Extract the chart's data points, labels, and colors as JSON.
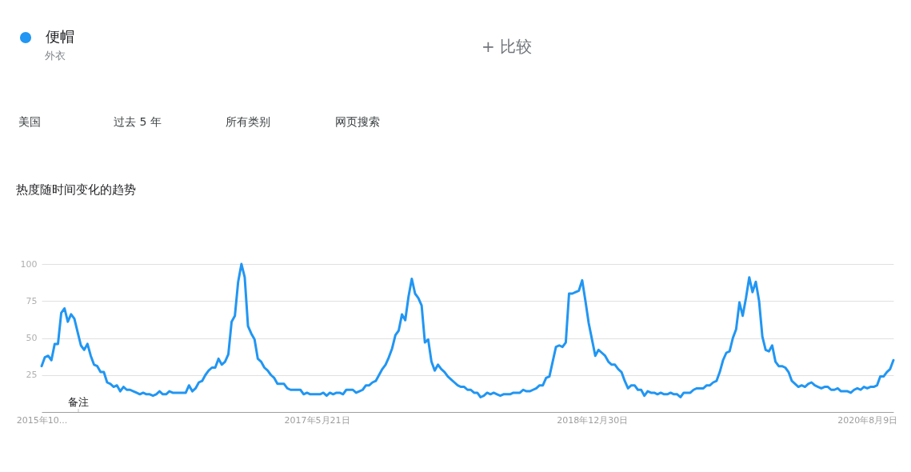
{
  "chart_data": {
    "type": "line",
    "title": "热度随时间变化的趋势",
    "annotations": [
      "外衣",
      "+ 比较",
      "美国",
      "过去 5 年",
      "所有类别",
      "网页搜索",
      "备注"
    ],
    "x": [
      "2015-10-11",
      "2015-10-18",
      "2015-10-25",
      "2015-11-01",
      "2015-11-08",
      "2015-11-15",
      "2015-11-22",
      "2015-11-29",
      "2015-12-06",
      "2015-12-13",
      "2015-12-20",
      "2015-12-27",
      "2016-01-03",
      "2016-01-10",
      "2016-01-17",
      "2016-01-24",
      "2016-01-31",
      "2016-02-07",
      "2016-02-14",
      "2016-02-21",
      "2016-02-28",
      "2016-03-06",
      "2016-03-13",
      "2016-03-20",
      "2016-03-27",
      "2016-04-03",
      "2016-04-10",
      "2016-04-17",
      "2016-04-24",
      "2016-05-01",
      "2016-05-08",
      "2016-05-15",
      "2016-05-22",
      "2016-05-29",
      "2016-06-05",
      "2016-06-12",
      "2016-06-19",
      "2016-06-26",
      "2016-07-03",
      "2016-07-10",
      "2016-07-17",
      "2016-08-14",
      "2016-08-21",
      "2016-08-28",
      "2016-09-04",
      "2016-09-11",
      "2016-09-18",
      "2016-09-25",
      "2016-10-02",
      "2016-10-09",
      "2016-10-16",
      "2016-10-23",
      "2016-10-30",
      "2016-11-06",
      "2016-11-13",
      "2016-11-20",
      "2016-11-27",
      "2016-12-04",
      "2016-12-11",
      "2016-12-18",
      "2016-12-25",
      "2017-01-01",
      "2017-01-08",
      "2017-01-15",
      "2017-01-22",
      "2017-01-29",
      "2017-02-05",
      "2017-02-12",
      "2017-02-19",
      "2017-02-26",
      "2017-03-12",
      "2017-03-19",
      "2017-03-26",
      "2017-04-16",
      "2017-04-23",
      "2017-04-30",
      "2017-05-07",
      "2017-05-28",
      "2017-06-04",
      "2017-06-11",
      "2017-06-18",
      "2017-06-25",
      "2017-07-02",
      "2017-07-09",
      "2017-07-16",
      "2017-07-23",
      "2017-08-06",
      "2017-08-13",
      "2017-08-20",
      "2017-08-27",
      "2017-09-03",
      "2017-09-10",
      "2017-09-17",
      "2017-09-24",
      "2017-10-01",
      "2017-10-08",
      "2017-10-15",
      "2017-10-22",
      "2017-10-29",
      "2017-11-05",
      "2017-11-12",
      "2017-11-19",
      "2017-11-26",
      "2017-12-03",
      "2017-12-10",
      "2017-12-17",
      "2017-12-24",
      "2017-12-31",
      "2018-01-07",
      "2018-01-14",
      "2018-01-21",
      "2018-01-28",
      "2018-02-04",
      "2018-02-11",
      "2018-02-18",
      "2018-02-25",
      "2018-03-04",
      "2018-03-11",
      "2018-03-18",
      "2018-03-25",
      "2018-04-01",
      "2018-04-08",
      "2018-04-15",
      "2018-04-22",
      "2018-04-29",
      "2018-05-06",
      "2018-05-13",
      "2018-05-20",
      "2018-05-27",
      "2018-06-03",
      "2018-06-10",
      "2018-06-17",
      "2018-06-24",
      "2018-07-08",
      "2018-07-15",
      "2018-07-29",
      "2018-08-05",
      "2018-08-12",
      "2018-08-19",
      "2018-08-26",
      "2018-09-02",
      "2018-09-09",
      "2018-09-16",
      "2018-09-23",
      "2018-09-30",
      "2018-10-07",
      "2018-10-14",
      "2018-10-21",
      "2018-10-28",
      "2018-11-04",
      "2018-11-11",
      "2018-11-18",
      "2018-11-25",
      "2018-12-02",
      "2018-12-09",
      "2018-12-16",
      "2018-12-23",
      "2018-12-30",
      "2019-01-06",
      "2019-01-13",
      "2019-01-20",
      "2019-01-27",
      "2019-02-03",
      "2019-02-10",
      "2019-02-17",
      "2019-02-24",
      "2019-03-03",
      "2019-03-10",
      "2019-03-17",
      "2019-03-24",
      "2019-03-31",
      "2019-04-07",
      "2019-04-14",
      "2019-04-21",
      "2019-04-28",
      "2019-05-05",
      "2019-05-12",
      "2019-05-19",
      "2019-05-26",
      "2019-06-02",
      "2019-06-09",
      "2019-06-16",
      "2019-06-23",
      "2019-06-30",
      "2019-07-07",
      "2019-07-14",
      "2019-07-28",
      "2019-08-04",
      "2019-08-11",
      "2019-08-25",
      "2019-09-01",
      "2019-09-08",
      "2019-09-15",
      "2019-09-22",
      "2019-09-29",
      "2019-10-06",
      "2019-10-13",
      "2019-10-20",
      "2019-10-27",
      "2019-11-03",
      "2019-11-10",
      "2019-11-17",
      "2019-11-24",
      "2019-12-01",
      "2019-12-08",
      "2019-12-15",
      "2019-12-22",
      "2019-12-29",
      "2020-01-05",
      "2020-01-12",
      "2020-01-19",
      "2020-01-26",
      "2020-02-02",
      "2020-02-09",
      "2020-02-16",
      "2020-02-23",
      "2020-03-01",
      "2020-03-08",
      "2020-03-15",
      "2020-03-22",
      "2020-03-29",
      "2020-04-05",
      "2020-04-12",
      "2020-04-19",
      "2020-04-26",
      "2020-05-03",
      "2020-05-10",
      "2020-05-17",
      "2020-05-24",
      "2020-05-31",
      "2020-06-07",
      "2020-06-14",
      "2020-06-28",
      "2020-07-05",
      "2020-07-12",
      "2020-07-19",
      "2020-07-26",
      "2020-08-02",
      "2020-08-09",
      "2020-08-16",
      "2020-08-23",
      "2020-08-30",
      "2020-09-06",
      "2020-09-13",
      "2020-09-20",
      "2020-09-27",
      "2020-10-04"
    ],
    "series": [
      {
        "name": "便帽",
        "color": "#2196f3",
        "values": [
          31,
          37,
          38,
          35,
          46,
          46,
          67,
          70,
          61,
          66,
          63,
          54,
          45,
          42,
          46,
          38,
          32,
          31,
          27,
          27,
          20,
          19,
          17,
          18,
          14,
          17,
          15,
          15,
          14,
          13,
          12,
          13,
          12,
          12,
          11,
          12,
          14,
          12,
          12,
          14,
          13,
          13,
          18,
          14,
          16,
          20,
          21,
          25,
          28,
          30,
          30,
          36,
          32,
          34,
          39,
          61,
          65,
          88,
          100,
          91,
          58,
          53,
          49,
          36,
          34,
          30,
          28,
          25,
          23,
          19,
          19,
          16,
          15,
          15,
          12,
          13,
          12,
          12,
          13,
          11,
          13,
          12,
          13,
          13,
          12,
          15,
          15,
          13,
          14,
          15,
          18,
          18,
          20,
          21,
          25,
          29,
          32,
          37,
          43,
          52,
          55,
          66,
          62,
          78,
          90,
          80,
          77,
          72,
          47,
          49,
          34,
          28,
          32,
          29,
          27,
          24,
          22,
          20,
          18,
          17,
          17,
          15,
          15,
          13,
          13,
          10,
          11,
          13,
          12,
          13,
          12,
          11,
          12,
          12,
          13,
          13,
          15,
          14,
          14,
          15,
          16,
          18,
          18,
          23,
          24,
          34,
          44,
          45,
          44,
          47,
          80,
          80,
          81,
          82,
          89,
          75,
          60,
          49,
          38,
          42,
          40,
          38,
          34,
          32,
          32,
          29,
          27,
          21,
          16,
          18,
          18,
          15,
          15,
          11,
          14,
          13,
          13,
          12,
          13,
          12,
          12,
          13,
          12,
          12,
          10,
          13,
          13,
          15,
          16,
          16,
          18,
          18,
          20,
          21,
          27,
          35,
          40,
          41,
          50,
          56,
          74,
          65,
          77,
          91,
          81,
          88,
          75,
          51,
          42,
          41,
          45,
          34,
          31,
          31,
          30,
          27,
          21,
          19,
          17,
          18,
          17,
          19,
          20,
          18,
          17,
          16,
          17,
          17,
          15,
          15,
          16,
          14,
          14,
          13,
          15,
          16,
          15,
          17,
          16,
          17,
          17,
          18,
          24,
          24,
          27,
          29,
          35
        ]
      }
    ],
    "xlim": [
      "2015-10-11",
      "2020-10-04"
    ],
    "xticks": [
      {
        "value": "2015-10-11",
        "label": "2015年10..."
      },
      {
        "value": "2017-05-21",
        "label": "2017年5月21日"
      },
      {
        "value": "2018-12-30",
        "label": "2018年12月30日"
      },
      {
        "value": "2020-08-09",
        "label": "2020年8月9日"
      }
    ],
    "ylim": [
      0,
      100
    ],
    "yticks": [
      25,
      50,
      75,
      100
    ],
    "grid": "y",
    "legend": "top left"
  }
}
